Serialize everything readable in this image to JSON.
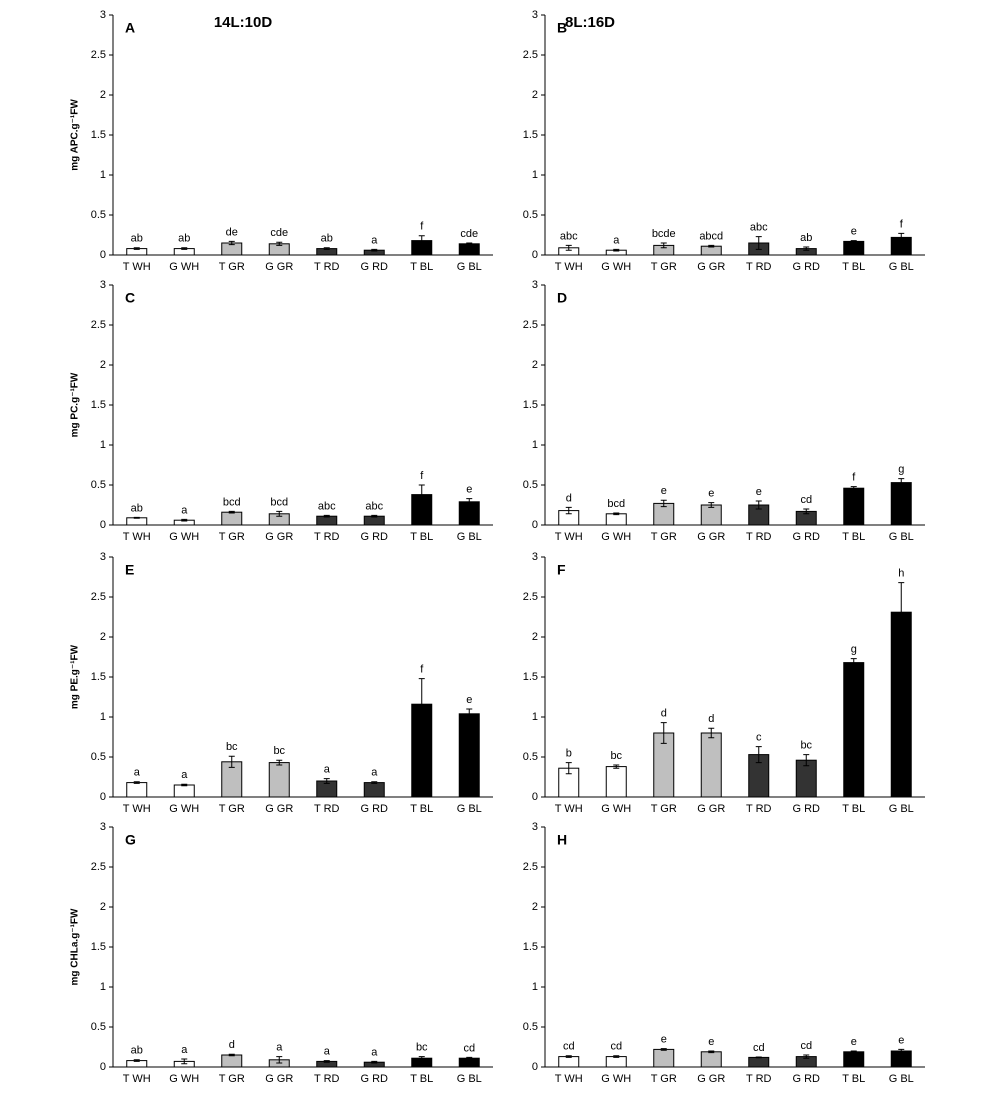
{
  "chart_data": [
    {
      "type": "bar",
      "panel": "A",
      "title": "14L:10D",
      "ylabel": "mg APC.g⁻¹FW",
      "categories": [
        "T WH",
        "G WH",
        "T GR",
        "G GR",
        "T RD",
        "G RD",
        "T BL",
        "G BL"
      ],
      "values": [
        0.08,
        0.08,
        0.15,
        0.14,
        0.08,
        0.06,
        0.18,
        0.14
      ],
      "errors": [
        0.01,
        0.01,
        0.02,
        0.02,
        0.01,
        0.01,
        0.06,
        0.01
      ],
      "letters": [
        "ab",
        "ab",
        "de",
        "cde",
        "ab",
        "a",
        "f",
        "cde"
      ],
      "colors": [
        "#ffffff",
        "#ffffff",
        "#bfbfbf",
        "#bfbfbf",
        "#333333",
        "#333333",
        "#000000",
        "#000000"
      ],
      "ylim": [
        0,
        3
      ],
      "yticks": [
        0,
        0.5,
        1,
        1.5,
        2,
        2.5,
        3
      ]
    },
    {
      "type": "bar",
      "panel": "B",
      "title": "8L:16D",
      "categories": [
        "T WH",
        "G WH",
        "T GR",
        "G GR",
        "T RD",
        "G RD",
        "T BL",
        "G BL"
      ],
      "values": [
        0.09,
        0.06,
        0.12,
        0.11,
        0.15,
        0.08,
        0.17,
        0.22
      ],
      "errors": [
        0.03,
        0.01,
        0.03,
        0.01,
        0.08,
        0.02,
        0.01,
        0.05
      ],
      "letters": [
        "abc",
        "a",
        "bcde",
        "abcd",
        "abc",
        "ab",
        "e",
        "f"
      ],
      "colors": [
        "#ffffff",
        "#ffffff",
        "#bfbfbf",
        "#bfbfbf",
        "#333333",
        "#333333",
        "#000000",
        "#000000"
      ],
      "ylim": [
        0,
        3
      ],
      "yticks": [
        0,
        0.5,
        1,
        1.5,
        2,
        2.5,
        3
      ]
    },
    {
      "type": "bar",
      "panel": "C",
      "ylabel": "mg PC.g⁻¹FW",
      "categories": [
        "T WH",
        "G WH",
        "T GR",
        "G GR",
        "T RD",
        "G RD",
        "T BL",
        "G BL"
      ],
      "values": [
        0.09,
        0.06,
        0.16,
        0.14,
        0.11,
        0.11,
        0.38,
        0.29
      ],
      "errors": [
        0.005,
        0.01,
        0.01,
        0.03,
        0.01,
        0.01,
        0.12,
        0.04
      ],
      "letters": [
        "ab",
        "a",
        "bcd",
        "bcd",
        "abc",
        "abc",
        "f",
        "e"
      ],
      "colors": [
        "#ffffff",
        "#ffffff",
        "#bfbfbf",
        "#bfbfbf",
        "#333333",
        "#333333",
        "#000000",
        "#000000"
      ],
      "ylim": [
        0,
        3
      ],
      "yticks": [
        0,
        0.5,
        1,
        1.5,
        2,
        2.5,
        3
      ]
    },
    {
      "type": "bar",
      "panel": "D",
      "categories": [
        "T WH",
        "G WH",
        "T GR",
        "G GR",
        "T RD",
        "G RD",
        "T BL",
        "G BL"
      ],
      "values": [
        0.18,
        0.14,
        0.27,
        0.25,
        0.25,
        0.17,
        0.46,
        0.53
      ],
      "errors": [
        0.04,
        0.01,
        0.04,
        0.03,
        0.05,
        0.03,
        0.02,
        0.05
      ],
      "letters": [
        "d",
        "bcd",
        "e",
        "e",
        "e",
        "cd",
        "f",
        "g"
      ],
      "colors": [
        "#ffffff",
        "#ffffff",
        "#bfbfbf",
        "#bfbfbf",
        "#333333",
        "#333333",
        "#000000",
        "#000000"
      ],
      "ylim": [
        0,
        3
      ],
      "yticks": [
        0,
        0.5,
        1,
        1.5,
        2,
        2.5,
        3
      ]
    },
    {
      "type": "bar",
      "panel": "E",
      "ylabel": "mg PE.g⁻¹FW",
      "categories": [
        "T WH",
        "G WH",
        "T GR",
        "G GR",
        "T RD",
        "G RD",
        "T BL",
        "G BL"
      ],
      "values": [
        0.18,
        0.15,
        0.44,
        0.43,
        0.2,
        0.18,
        1.16,
        1.04
      ],
      "errors": [
        0.01,
        0.01,
        0.07,
        0.03,
        0.03,
        0.01,
        0.32,
        0.06
      ],
      "letters": [
        "a",
        "a",
        "bc",
        "bc",
        "a",
        "a",
        "f",
        "e"
      ],
      "colors": [
        "#ffffff",
        "#ffffff",
        "#bfbfbf",
        "#bfbfbf",
        "#333333",
        "#333333",
        "#000000",
        "#000000"
      ],
      "ylim": [
        0,
        3
      ],
      "yticks": [
        0,
        0.5,
        1,
        1.5,
        2,
        2.5,
        3
      ]
    },
    {
      "type": "bar",
      "panel": "F",
      "categories": [
        "T WH",
        "G WH",
        "T GR",
        "G GR",
        "T RD",
        "G RD",
        "T BL",
        "G BL"
      ],
      "values": [
        0.36,
        0.38,
        0.8,
        0.8,
        0.53,
        0.46,
        1.68,
        2.31
      ],
      "errors": [
        0.07,
        0.02,
        0.13,
        0.06,
        0.1,
        0.07,
        0.05,
        0.37
      ],
      "letters": [
        "b",
        "bc",
        "d",
        "d",
        "c",
        "bc",
        "g",
        "h"
      ],
      "colors": [
        "#ffffff",
        "#ffffff",
        "#bfbfbf",
        "#bfbfbf",
        "#333333",
        "#333333",
        "#000000",
        "#000000"
      ],
      "ylim": [
        0,
        3
      ],
      "yticks": [
        0,
        0.5,
        1,
        1.5,
        2,
        2.5,
        3
      ]
    },
    {
      "type": "bar",
      "panel": "G",
      "ylabel": "mg CHLa.g⁻¹FW",
      "categories": [
        "T WH",
        "G WH",
        "T GR",
        "G GR",
        "T RD",
        "G RD",
        "T BL",
        "G BL"
      ],
      "values": [
        0.08,
        0.07,
        0.15,
        0.09,
        0.07,
        0.06,
        0.11,
        0.11
      ],
      "errors": [
        0.01,
        0.03,
        0.01,
        0.04,
        0.01,
        0.01,
        0.02,
        0.01
      ],
      "letters": [
        "ab",
        "a",
        "d",
        "a",
        "a",
        "a",
        "bc",
        "cd"
      ],
      "colors": [
        "#ffffff",
        "#ffffff",
        "#bfbfbf",
        "#bfbfbf",
        "#333333",
        "#333333",
        "#000000",
        "#000000"
      ],
      "ylim": [
        0,
        3
      ],
      "yticks": [
        0,
        0.5,
        1,
        1.5,
        2,
        2.5,
        3
      ]
    },
    {
      "type": "bar",
      "panel": "H",
      "categories": [
        "T WH",
        "G WH",
        "T GR",
        "G GR",
        "T RD",
        "G RD",
        "T BL",
        "G BL"
      ],
      "values": [
        0.13,
        0.13,
        0.22,
        0.19,
        0.12,
        0.13,
        0.19,
        0.2
      ],
      "errors": [
        0.01,
        0.01,
        0.01,
        0.01,
        0.005,
        0.02,
        0.01,
        0.02
      ],
      "letters": [
        "cd",
        "cd",
        "e",
        "e",
        "cd",
        "cd",
        "e",
        "e"
      ],
      "colors": [
        "#ffffff",
        "#ffffff",
        "#bfbfbf",
        "#bfbfbf",
        "#333333",
        "#333333",
        "#000000",
        "#000000"
      ],
      "ylim": [
        0,
        3
      ],
      "yticks": [
        0,
        0.5,
        1,
        1.5,
        2,
        2.5,
        3
      ]
    }
  ]
}
